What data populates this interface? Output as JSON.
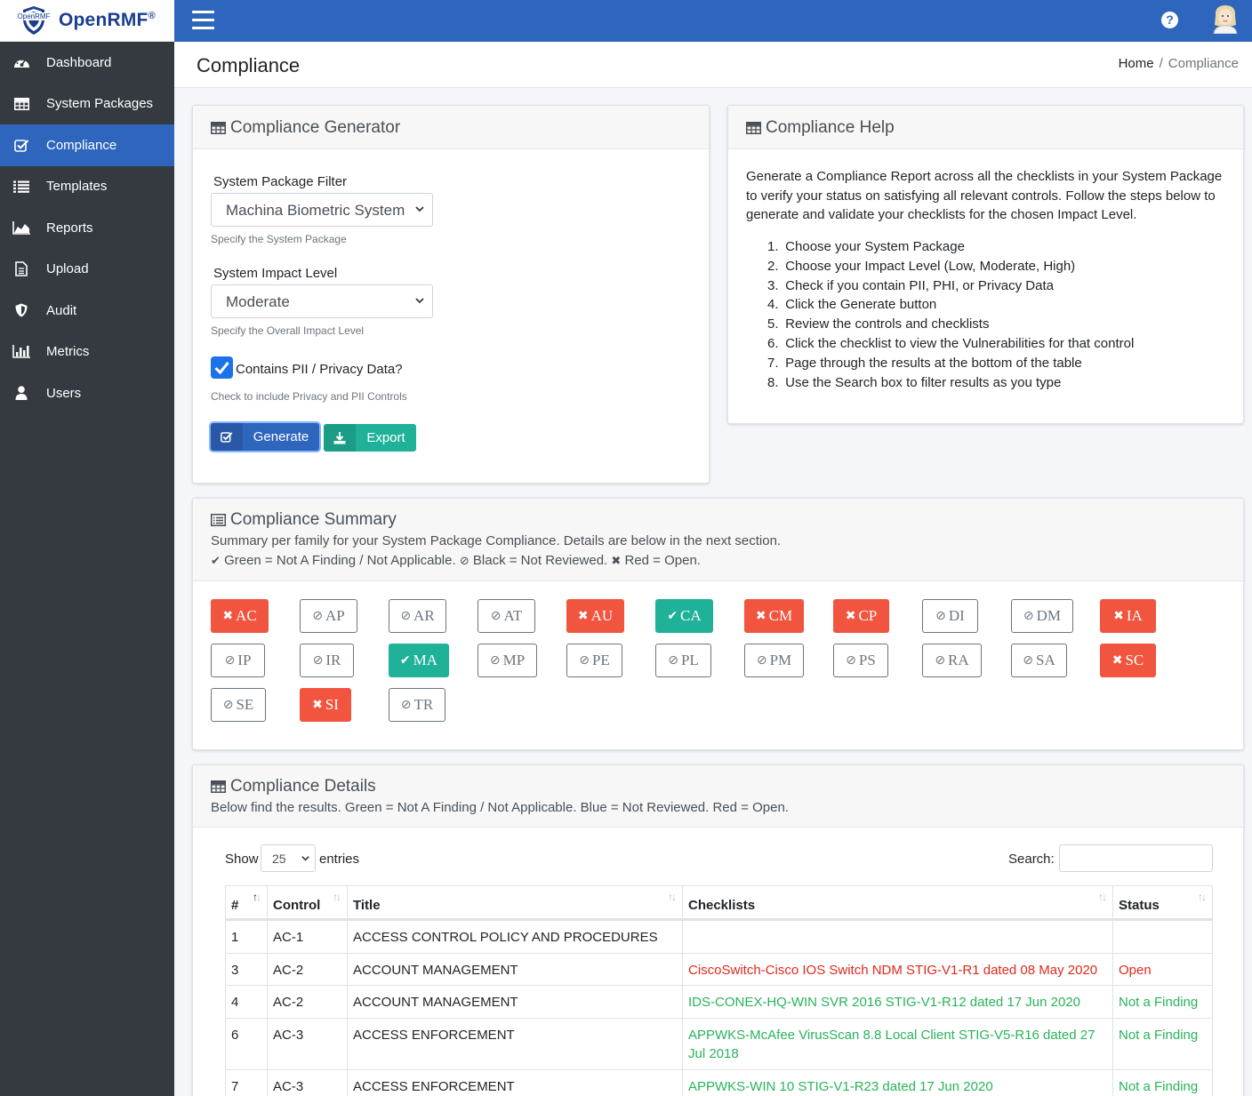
{
  "brand": {
    "name": "OpenRMF",
    "reg": "®",
    "logo_text": "OpenRMF"
  },
  "sidebar": {
    "items": [
      {
        "label": "Dashboard",
        "icon": "dashboard-icon"
      },
      {
        "label": "System Packages",
        "icon": "table-icon"
      },
      {
        "label": "Compliance",
        "icon": "check-square-icon",
        "active": true
      },
      {
        "label": "Templates",
        "icon": "list-icon"
      },
      {
        "label": "Reports",
        "icon": "area-chart-icon"
      },
      {
        "label": "Upload",
        "icon": "file-icon"
      },
      {
        "label": "Audit",
        "icon": "shield-icon"
      },
      {
        "label": "Metrics",
        "icon": "bar-chart-icon"
      },
      {
        "label": "Users",
        "icon": "user-icon"
      }
    ]
  },
  "topbar": {
    "help": "?"
  },
  "header": {
    "title": "Compliance",
    "breadcrumb": {
      "home": "Home",
      "sep": "/",
      "current": "Compliance"
    }
  },
  "generator": {
    "title": "Compliance Generator",
    "package_label": "System Package Filter",
    "package_value": "Machina Biometric System",
    "package_hint": "Specify the System Package",
    "impact_label": "System Impact Level",
    "impact_value": "Moderate",
    "impact_hint": "Specify the Overall Impact Level",
    "pii_label": "Contains PII / Privacy Data?",
    "pii_checked": true,
    "pii_hint": "Check to include Privacy and PII Controls",
    "generate_label": "Generate",
    "export_label": "Export"
  },
  "help": {
    "title": "Compliance Help",
    "intro": "Generate a Compliance Report across all the checklists in your System Package to verify your status on satisfying all relevant controls. Follow the steps below to generate and validate your checklists for the chosen Impact Level.",
    "steps": [
      {
        "n": "1.",
        "text": "Choose your System Package"
      },
      {
        "n": "2.",
        "text": "Choose your Impact Level (Low, Moderate, High)"
      },
      {
        "n": "3.",
        "text": "Check if you contain PII, PHI, or Privacy Data"
      },
      {
        "n": "4.",
        "text": "Click the Generate button"
      },
      {
        "n": "5.",
        "text": "Review the controls and checklists"
      },
      {
        "n": "6.",
        "text": "Click the checklist to view the Vulnerabilities for that control"
      },
      {
        "n": "7.",
        "text": "Page through the results at the bottom of the table"
      },
      {
        "n": "8.",
        "text": "Use the Search box to filter results as you type"
      }
    ]
  },
  "summary": {
    "title": "Compliance Summary",
    "subtitle": "Summary per family for your System Package Compliance. Details are below in the next section.",
    "legend_green": "Green = Not A Finding / Not Applicable.",
    "legend_black": "Black = Not Reviewed.",
    "legend_red": "Red = Open.",
    "families": [
      {
        "code": "AC",
        "status": "open"
      },
      {
        "code": "AP",
        "status": "nr"
      },
      {
        "code": "AR",
        "status": "nr"
      },
      {
        "code": "AT",
        "status": "nr"
      },
      {
        "code": "AU",
        "status": "open"
      },
      {
        "code": "CA",
        "status": "ok"
      },
      {
        "code": "CM",
        "status": "open"
      },
      {
        "code": "CP",
        "status": "open"
      },
      {
        "code": "DI",
        "status": "nr"
      },
      {
        "code": "DM",
        "status": "nr"
      },
      {
        "code": "IA",
        "status": "open"
      },
      {
        "code": "IP",
        "status": "nr"
      },
      {
        "code": "IR",
        "status": "nr"
      },
      {
        "code": "MA",
        "status": "ok"
      },
      {
        "code": "MP",
        "status": "nr"
      },
      {
        "code": "PE",
        "status": "nr"
      },
      {
        "code": "PL",
        "status": "nr"
      },
      {
        "code": "PM",
        "status": "nr"
      },
      {
        "code": "PS",
        "status": "nr"
      },
      {
        "code": "RA",
        "status": "nr"
      },
      {
        "code": "SA",
        "status": "nr"
      },
      {
        "code": "SC",
        "status": "open"
      },
      {
        "code": "SE",
        "status": "nr"
      },
      {
        "code": "SI",
        "status": "open"
      },
      {
        "code": "TR",
        "status": "nr"
      }
    ]
  },
  "details": {
    "title": "Compliance Details",
    "subtitle": "Below find the results. Green = Not A Finding / Not Applicable. Blue = Not Reviewed. Red = Open.",
    "show_label": "Show",
    "page_length": "25",
    "entries_label": "entries",
    "search_label": "Search:",
    "search_value": "",
    "columns": [
      "#",
      "Control",
      "Title",
      "Checklists",
      "Status"
    ],
    "rows": [
      {
        "num": "1",
        "control": "AC-1",
        "title": "ACCESS CONTROL POLICY AND PROCEDURES",
        "checklist": "",
        "status": "",
        "color": ""
      },
      {
        "num": "3",
        "control": "AC-2",
        "title": "ACCOUNT MANAGEMENT",
        "checklist": "CiscoSwitch-Cisco IOS Switch NDM STIG-V1-R1 dated 08 May 2020",
        "status": "Open",
        "color": "red"
      },
      {
        "num": "4",
        "control": "AC-2",
        "title": "ACCOUNT MANAGEMENT",
        "checklist": "IDS-CONEX-HQ-WIN SVR 2016 STIG-V1-R12 dated 17 Jun 2020",
        "status": "Not a Finding",
        "color": "green"
      },
      {
        "num": "6",
        "control": "AC-3",
        "title": "ACCESS ENFORCEMENT",
        "checklist": "APPWKS-McAfee VirusScan 8.8 Local Client STIG-V5-R16 dated 27 Jul 2018",
        "status": "Not a Finding",
        "color": "green"
      },
      {
        "num": "7",
        "control": "AC-3",
        "title": "ACCESS ENFORCEMENT",
        "checklist": "APPWKS-WIN 10 STIG-V1-R23 dated 17 Jun 2020",
        "status": "Not a Finding",
        "color": "green"
      }
    ]
  },
  "colors": {
    "primary": "#2f66bd",
    "sidebar": "#343a40",
    "open": "#f1553f",
    "ok": "#1fb299"
  }
}
